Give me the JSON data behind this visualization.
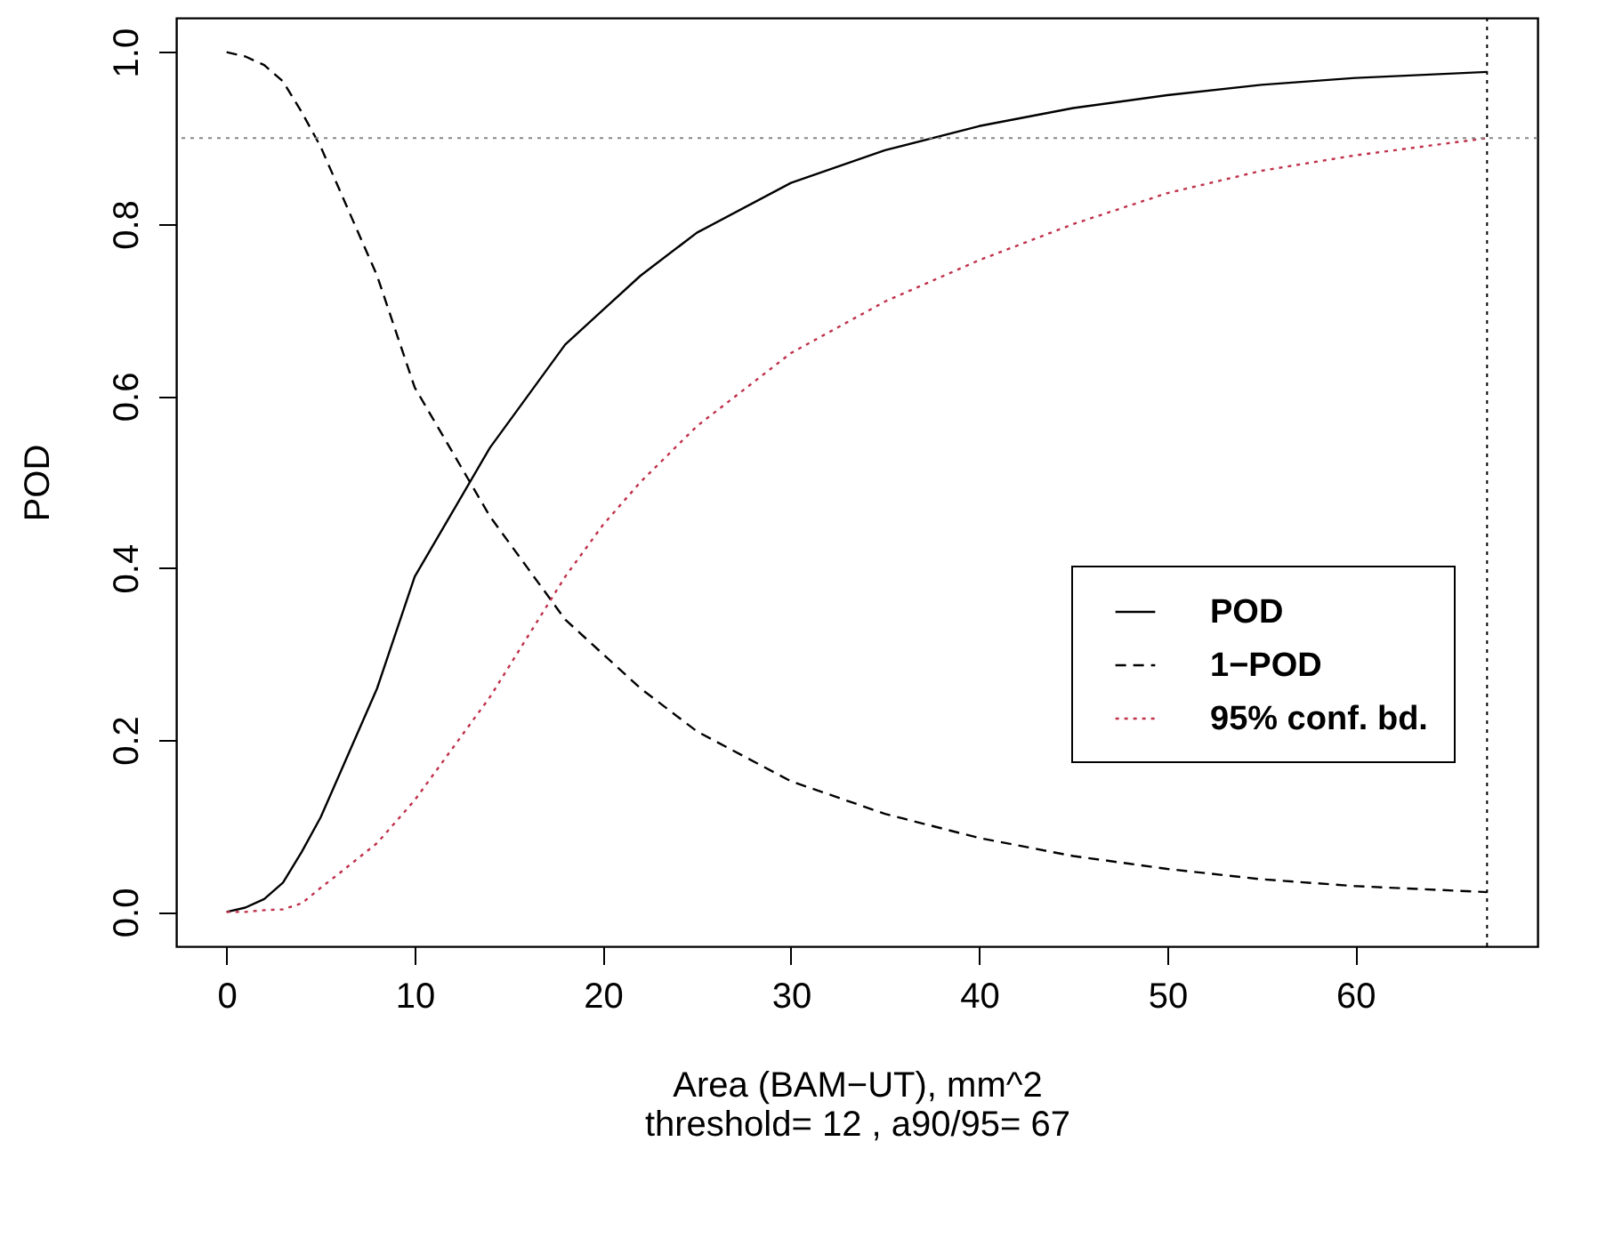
{
  "chart_data": {
    "type": "line",
    "xlabel": "Area (BAM−UT), mm^2",
    "ylabel": "POD",
    "annotations": [
      "threshold= 12 , a90/95= 67"
    ],
    "x": [
      0,
      1,
      2,
      3,
      4,
      5,
      6,
      8,
      10,
      12,
      14,
      16,
      18,
      20,
      22,
      25,
      30,
      35,
      40,
      45,
      50,
      55,
      60,
      67
    ],
    "series": [
      {
        "name": "POD",
        "color": "#000000",
        "line_style": "solid",
        "values": [
          0,
          0.005,
          0.015,
          0.034,
          0.07,
          0.11,
          0.16,
          0.26,
          0.39,
          0.465,
          0.54,
          0.6,
          0.66,
          0.7,
          0.74,
          0.79,
          0.848,
          0.886,
          0.914,
          0.935,
          0.95,
          0.962,
          0.97,
          0.977
        ]
      },
      {
        "name": "1−POD",
        "color": "#000000",
        "line_style": "dashed",
        "values": [
          1,
          0.995,
          0.985,
          0.966,
          0.93,
          0.89,
          0.84,
          0.74,
          0.61,
          0.535,
          0.46,
          0.4,
          0.34,
          0.3,
          0.26,
          0.21,
          0.152,
          0.114,
          0.086,
          0.065,
          0.05,
          0.038,
          0.03,
          0.023
        ]
      },
      {
        "name": "95% conf. bd.",
        "color": "#c0304a",
        "line_style": "dotted",
        "values": [
          0,
          0,
          0.002,
          0.003,
          0.01,
          0.028,
          0.045,
          0.08,
          0.13,
          0.19,
          0.25,
          0.32,
          0.39,
          0.45,
          0.5,
          0.565,
          0.65,
          0.71,
          0.758,
          0.8,
          0.836,
          0.862,
          0.88,
          0.9
        ]
      }
    ],
    "xlim": [
      -2.68,
      69.68
    ],
    "xticks": [
      0,
      10,
      20,
      30,
      40,
      50,
      60
    ],
    "ylim": [
      -0.04,
      1.04
    ],
    "yticks": [
      {
        "value": 0,
        "label": "0.0"
      },
      {
        "value": 0.2,
        "label": "0.2"
      },
      {
        "value": 0.4,
        "label": "0.4"
      },
      {
        "value": 0.6,
        "label": "0.6"
      },
      {
        "value": 0.8,
        "label": "0.8"
      },
      {
        "value": 1,
        "label": "1.0"
      }
    ],
    "ref_lines": [
      {
        "axis": "y",
        "value": 0.9,
        "color": "#888888",
        "line_style": "dotted"
      },
      {
        "axis": "x",
        "value": 67,
        "color": "#000000",
        "line_style": "dotted"
      }
    ],
    "grid": false,
    "legend": "right"
  }
}
